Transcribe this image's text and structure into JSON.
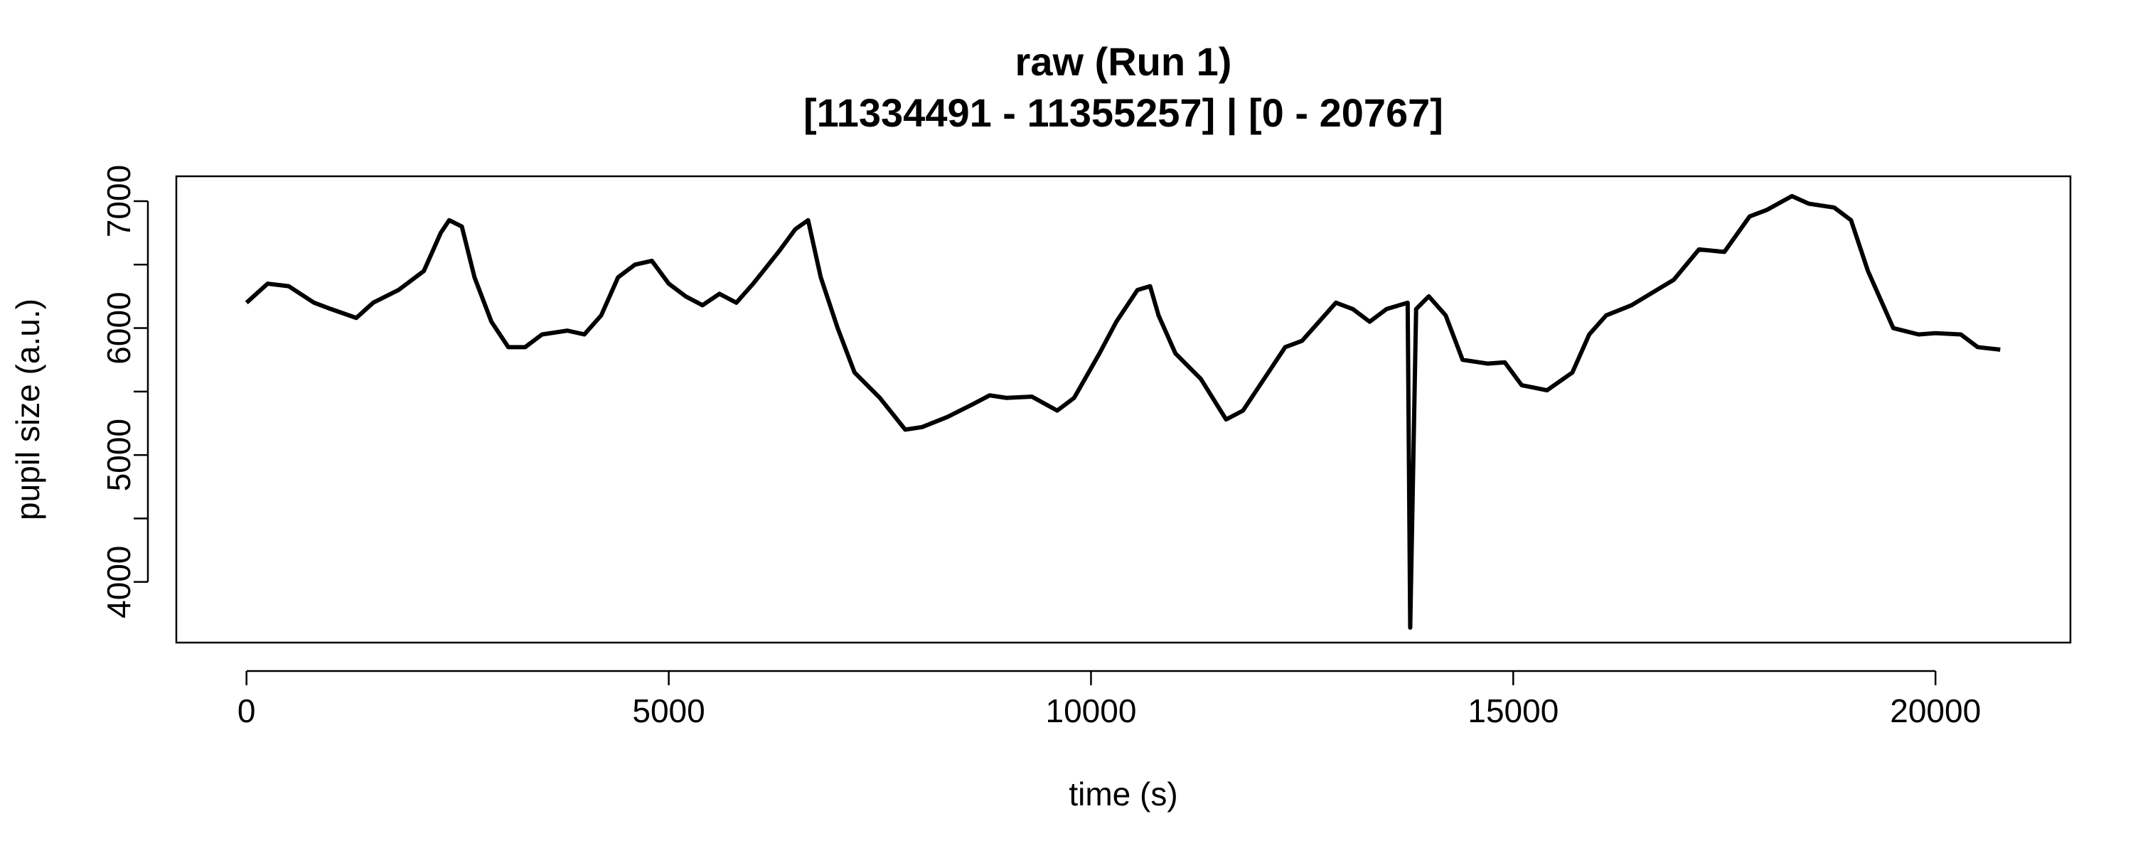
{
  "chart_data": {
    "type": "line",
    "title": "raw (Run 1)",
    "subtitle": "[11334491 - 11355257] | [0 - 20767]",
    "x_label": "time (s)",
    "y_label": "pupil size (a.u.)",
    "xlim": [
      -831,
      21598
    ],
    "ylim": [
      3522,
      7196
    ],
    "xticks": [
      0,
      5000,
      10000,
      15000,
      20000
    ],
    "yticks": [
      4000,
      5000,
      6000,
      7000
    ],
    "yticks_unlabeled": [
      4500,
      5500,
      6500
    ],
    "x": [
      0,
      250,
      500,
      800,
      1000,
      1300,
      1500,
      1800,
      2100,
      2300,
      2400,
      2550,
      2700,
      2900,
      3100,
      3300,
      3500,
      3800,
      4000,
      4200,
      4400,
      4600,
      4800,
      5000,
      5200,
      5400,
      5600,
      5800,
      6000,
      6300,
      6500,
      6650,
      6800,
      7000,
      7200,
      7500,
      7800,
      8000,
      8300,
      8600,
      8800,
      9000,
      9300,
      9600,
      9800,
      10100,
      10300,
      10550,
      10700,
      10800,
      11000,
      11300,
      11600,
      11800,
      12000,
      12300,
      12500,
      12700,
      12900,
      13100,
      13300,
      13500,
      13750,
      13780,
      13850,
      14000,
      14200,
      14400,
      14700,
      14900,
      15100,
      15400,
      15700,
      15900,
      16100,
      16400,
      16700,
      16900,
      17200,
      17500,
      17800,
      18000,
      18300,
      18500,
      18800,
      19000,
      19200,
      19500,
      19800,
      20000,
      20300,
      20500,
      20767
    ],
    "series": [
      {
        "name": "raw",
        "color": "#000000",
        "values": [
          6200,
          6350,
          6330,
          6200,
          6150,
          6080,
          6200,
          6300,
          6450,
          6750,
          6850,
          6800,
          6400,
          6050,
          5850,
          5850,
          5950,
          5980,
          5950,
          6100,
          6400,
          6500,
          6530,
          6350,
          6250,
          6180,
          6270,
          6200,
          6350,
          6600,
          6780,
          6850,
          6400,
          6000,
          5650,
          5450,
          5200,
          5220,
          5300,
          5400,
          5470,
          5450,
          5460,
          5350,
          5450,
          5800,
          6050,
          6300,
          6330,
          6100,
          5800,
          5600,
          5280,
          5350,
          5550,
          5850,
          5900,
          6050,
          6200,
          6150,
          6050,
          6150,
          6200,
          3640,
          6150,
          6250,
          6100,
          5750,
          5720,
          5730,
          5550,
          5510,
          5650,
          5950,
          6100,
          6180,
          6300,
          6380,
          6620,
          6600,
          6880,
          6930,
          7040,
          6980,
          6950,
          6850,
          6450,
          6000,
          5950,
          5960,
          5950,
          5850,
          5830
        ]
      }
    ]
  }
}
